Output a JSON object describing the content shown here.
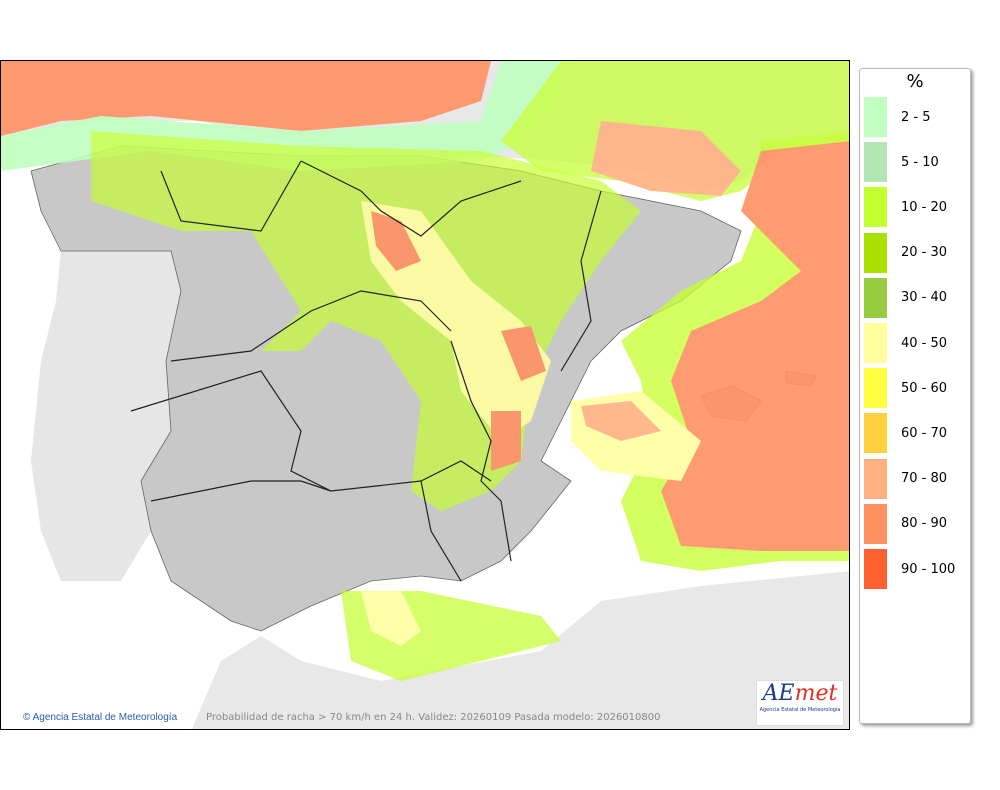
{
  "map": {
    "caption": "Probabilidad de racha > 70 km/h en 24 h. Validez: 20260109 Pasada modelo: 2026010800",
    "credit": "Agencia Estatal de Meteorología",
    "credit_icon": "copyright-icon",
    "logo_text": "AEmet",
    "logo_subtitle": "Agencia Estatal de Meteorología"
  },
  "legend": {
    "unit": "%",
    "items": [
      {
        "label": "2 - 5",
        "color": "#c0ffc0"
      },
      {
        "label": "5 - 10",
        "color": "#b2e6b2"
      },
      {
        "label": "10 - 20",
        "color": "#c4ff30"
      },
      {
        "label": "20 - 30",
        "color": "#a8e000"
      },
      {
        "label": "30 - 40",
        "color": "#98cc40"
      },
      {
        "label": "40 - 50",
        "color": "#ffffa0"
      },
      {
        "label": "50 - 60",
        "color": "#ffff40"
      },
      {
        "label": "60 - 70",
        "color": "#ffd040"
      },
      {
        "label": "70 - 80",
        "color": "#ffb080"
      },
      {
        "label": "80 - 90",
        "color": "#ff9060"
      },
      {
        "label": "90 - 100",
        "color": "#ff6030"
      }
    ]
  }
}
